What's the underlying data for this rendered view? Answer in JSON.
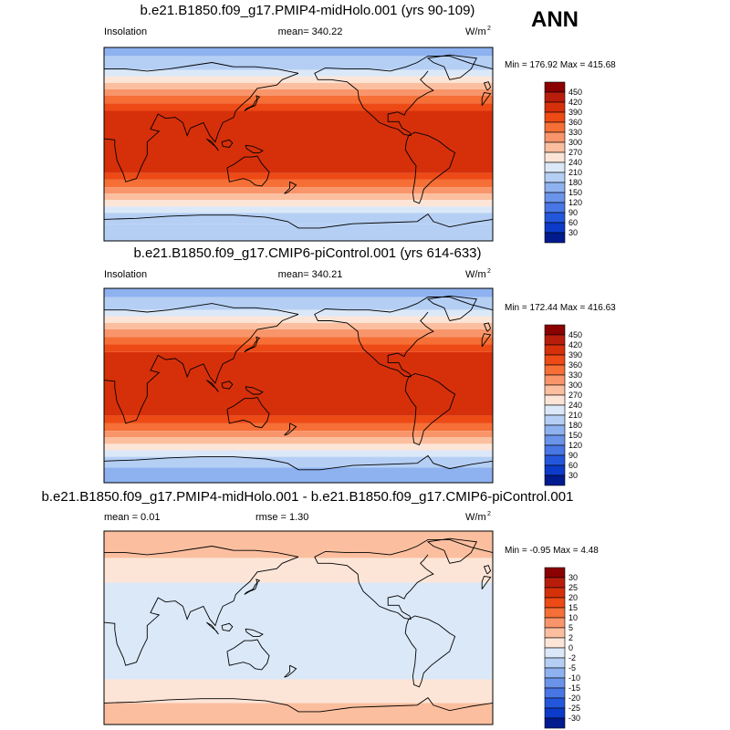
{
  "season": "ANN",
  "chart_data": [
    {
      "type": "heatmap",
      "title": "b.e21.B1850.f09_g17.PMIP4-midHolo.001 (yrs 90-109)",
      "variable": "Insolation",
      "mean_text": "mean= 340.22",
      "units": "W/m",
      "units_exp": "2",
      "minmax_text": "Min = 176.92 Max = 415.68",
      "zonal_bands": [
        {
          "lat_from": 90,
          "lat_to": 82,
          "value": 165
        },
        {
          "lat_from": 82,
          "lat_to": 69,
          "value": 195
        },
        {
          "lat_from": 69,
          "lat_to": 63,
          "value": 225
        },
        {
          "lat_from": 63,
          "lat_to": 57,
          "value": 255
        },
        {
          "lat_from": 57,
          "lat_to": 51,
          "value": 285
        },
        {
          "lat_from": 51,
          "lat_to": 45,
          "value": 315
        },
        {
          "lat_from": 45,
          "lat_to": 38,
          "value": 345
        },
        {
          "lat_from": 38,
          "lat_to": 31,
          "value": 375
        },
        {
          "lat_from": 31,
          "lat_to": -27,
          "value": 405
        },
        {
          "lat_from": -27,
          "lat_to": -33,
          "value": 375
        },
        {
          "lat_from": -33,
          "lat_to": -40,
          "value": 345
        },
        {
          "lat_from": -40,
          "lat_to": -46,
          "value": 315
        },
        {
          "lat_from": -46,
          "lat_to": -52,
          "value": 285
        },
        {
          "lat_from": -52,
          "lat_to": -58,
          "value": 255
        },
        {
          "lat_from": -58,
          "lat_to": -64,
          "value": 225
        },
        {
          "lat_from": -64,
          "lat_to": -74,
          "value": 195
        },
        {
          "lat_from": -74,
          "lat_to": -90,
          "value": 195
        }
      ],
      "colorbar": {
        "levels": [
          "450",
          "420",
          "390",
          "360",
          "330",
          "300",
          "270",
          "240",
          "210",
          "180",
          "150",
          "120",
          "90",
          "60",
          "30"
        ],
        "colors": [
          "#8b0000",
          "#b81d0b",
          "#d6300a",
          "#ed4a16",
          "#f56f36",
          "#f9956a",
          "#fbbf9f",
          "#fce5d7",
          "#dbe8f8",
          "#b5cff4",
          "#8eb2f0",
          "#6a93ea",
          "#4876e4",
          "#2357db",
          "#0b3bc8",
          "#001b8e"
        ]
      }
    },
    {
      "type": "heatmap",
      "title": "b.e21.B1850.f09_g17.CMIP6-piControl.001 (yrs 614-633)",
      "variable": "Insolation",
      "mean_text": "mean= 340.21",
      "units": "W/m",
      "units_exp": "2",
      "minmax_text": "Min = 172.44 Max = 416.63",
      "zonal_bands": [
        {
          "lat_from": 90,
          "lat_to": 82,
          "value": 165
        },
        {
          "lat_from": 82,
          "lat_to": 70,
          "value": 195
        },
        {
          "lat_from": 70,
          "lat_to": 64,
          "value": 225
        },
        {
          "lat_from": 64,
          "lat_to": 58,
          "value": 255
        },
        {
          "lat_from": 58,
          "lat_to": 52,
          "value": 285
        },
        {
          "lat_from": 52,
          "lat_to": 45,
          "value": 315
        },
        {
          "lat_from": 45,
          "lat_to": 38,
          "value": 345
        },
        {
          "lat_from": 38,
          "lat_to": 31,
          "value": 375
        },
        {
          "lat_from": 31,
          "lat_to": -28,
          "value": 405
        },
        {
          "lat_from": -28,
          "lat_to": -35,
          "value": 375
        },
        {
          "lat_from": -35,
          "lat_to": -42,
          "value": 345
        },
        {
          "lat_from": -42,
          "lat_to": -48,
          "value": 315
        },
        {
          "lat_from": -48,
          "lat_to": -54,
          "value": 285
        },
        {
          "lat_from": -54,
          "lat_to": -60,
          "value": 255
        },
        {
          "lat_from": -60,
          "lat_to": -66,
          "value": 225
        },
        {
          "lat_from": -66,
          "lat_to": -76,
          "value": 195
        },
        {
          "lat_from": -76,
          "lat_to": -90,
          "value": 165
        }
      ],
      "colorbar": {
        "levels": [
          "450",
          "420",
          "390",
          "360",
          "330",
          "300",
          "270",
          "240",
          "210",
          "180",
          "150",
          "120",
          "90",
          "60",
          "30"
        ],
        "colors": [
          "#8b0000",
          "#b81d0b",
          "#d6300a",
          "#ed4a16",
          "#f56f36",
          "#f9956a",
          "#fbbf9f",
          "#fce5d7",
          "#dbe8f8",
          "#b5cff4",
          "#8eb2f0",
          "#6a93ea",
          "#4876e4",
          "#2357db",
          "#0b3bc8",
          "#001b8e"
        ]
      }
    },
    {
      "type": "heatmap",
      "title": "b.e21.B1850.f09_g17.PMIP4-midHolo.001 - b.e21.B1850.f09_g17.CMIP6-piControl.001",
      "mean_text": "mean =   0.01",
      "rmse_text": "rmse =   1.30",
      "units": "W/m",
      "units_exp": "2",
      "minmax_text": "Min =  -0.95 Max =   4.48",
      "zonal_bands": [
        {
          "lat_from": 90,
          "lat_to": 65,
          "value": 3.5
        },
        {
          "lat_from": 65,
          "lat_to": 42,
          "value": 1.0
        },
        {
          "lat_from": 42,
          "lat_to": -48,
          "value": -1.0
        },
        {
          "lat_from": -48,
          "lat_to": -70,
          "value": 1.0
        },
        {
          "lat_from": -70,
          "lat_to": -90,
          "value": 3.5
        }
      ],
      "colorbar": {
        "levels": [
          "30",
          "25",
          "20",
          "15",
          "10",
          "5",
          "2",
          "0",
          "-2",
          "-5",
          "-10",
          "-15",
          "-20",
          "-25",
          "-30"
        ],
        "colors": [
          "#8b0000",
          "#b81d0b",
          "#d6300a",
          "#ed4a16",
          "#f56f36",
          "#f9956a",
          "#fbbf9f",
          "#fce5d7",
          "#dbe8f8",
          "#b5cff4",
          "#8eb2f0",
          "#6a93ea",
          "#4876e4",
          "#2357db",
          "#0b3bc8",
          "#001b8e"
        ]
      }
    }
  ]
}
